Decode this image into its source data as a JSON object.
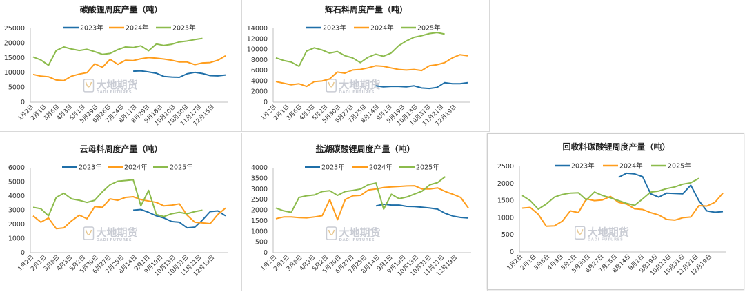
{
  "watermark": {
    "cn": "大地期货",
    "en": "DADI FUTURES"
  },
  "colors": {
    "2023年": "#1f6fa8",
    "2024年": "#ff9d1c",
    "2025年": "#8cbb4c"
  },
  "chart_data": [
    {
      "type": "line",
      "title": "碳酸锂周度产量（吨）",
      "ylim": [
        0,
        25000
      ],
      "yticks": [
        0,
        5000,
        10000,
        15000,
        20000,
        25000
      ],
      "xtick_labels": [
        "1月2日",
        "2月1日",
        "3月6日",
        "4月3日",
        "5月1日",
        "5月29日",
        "6月26日",
        "7月24日",
        "8月11日",
        "8月29日",
        "9月18日",
        "10月10日",
        "10月30日",
        "11月17日",
        "12月15日"
      ],
      "x_points": 26,
      "legend": "top",
      "series": [
        {
          "name": "2023年",
          "start": 13,
          "values": [
            10500,
            10600,
            10200,
            9800,
            8700,
            8500,
            8400,
            9600,
            10100,
            9700,
            9000,
            8900,
            9200
          ]
        },
        {
          "name": "2024年",
          "start": 0,
          "values": [
            9400,
            8800,
            8600,
            7500,
            7300,
            8800,
            9500,
            10000,
            13000,
            11800,
            14500,
            12800,
            14200,
            14100,
            14700,
            15100,
            14900,
            14600,
            14200,
            13600,
            13600,
            12700,
            13300,
            13400,
            14200,
            15700
          ]
        },
        {
          "name": "2025年",
          "start": 0,
          "values": [
            15300,
            14300,
            12500,
            17500,
            18700,
            18000,
            17500,
            17900,
            17100,
            16200,
            16500,
            17800,
            18700,
            18500,
            19100,
            17400,
            19700,
            19200,
            19600,
            20400,
            20700,
            21200,
            21600
          ]
        }
      ]
    },
    {
      "type": "line",
      "title": "辉石料周度产量（吨）",
      "ylim": [
        0,
        14000
      ],
      "yticks": [
        0,
        2000,
        4000,
        6000,
        8000,
        10000,
        12000,
        14000
      ],
      "xtick_labels": [
        "1月2日",
        "2月1日",
        "3月6日",
        "4月3日",
        "5月2日",
        "5月30日",
        "6月27日",
        "7月25日",
        "8月14日",
        "9月1日",
        "9月19日",
        "10月13日",
        "10月31日",
        "11月21日",
        "12月19日"
      ],
      "x_points": 26,
      "legend": "top",
      "series": [
        {
          "name": "2023年",
          "start": 13,
          "values": [
            3100,
            2900,
            3000,
            3000,
            2900,
            3100,
            2700,
            2600,
            2800,
            3700,
            3500,
            3500,
            3700
          ]
        },
        {
          "name": "2024年",
          "start": 0,
          "values": [
            3900,
            3600,
            3300,
            3500,
            3000,
            3900,
            4000,
            4400,
            5700,
            5500,
            6100,
            6200,
            6500,
            6900,
            6800,
            6500,
            6200,
            6100,
            6200,
            6000,
            6900,
            7100,
            7500,
            8400,
            9000,
            8800
          ]
        },
        {
          "name": "2025年",
          "start": 0,
          "values": [
            8400,
            7900,
            7600,
            6800,
            9700,
            10300,
            9900,
            9300,
            9600,
            8800,
            8400,
            7500,
            8500,
            9100,
            8700,
            9300,
            10700,
            11600,
            12300,
            12600,
            13000,
            13200,
            12900
          ]
        }
      ]
    },
    {
      "type": "line",
      "title": "云母料周度产量（吨）",
      "ylim": [
        0,
        6000
      ],
      "yticks": [
        0,
        1000,
        2000,
        3000,
        4000,
        5000,
        6000
      ],
      "xtick_labels": [
        "1月2日",
        "2月1日",
        "3月6日",
        "4月3日",
        "5月2日",
        "5月30日",
        "6月27日",
        "7月25日",
        "8月14日",
        "9月1日",
        "9月19日",
        "10月13日",
        "10月31日",
        "11月21日",
        "12月19日"
      ],
      "x_points": 26,
      "legend": "top",
      "series": [
        {
          "name": "2023年",
          "start": 13,
          "values": [
            3000,
            3050,
            2850,
            2600,
            2450,
            2200,
            2150,
            1750,
            1800,
            2300,
            2900,
            2950,
            2600
          ]
        },
        {
          "name": "2024年",
          "start": 0,
          "values": [
            2600,
            2150,
            2450,
            1700,
            1750,
            2250,
            2650,
            2400,
            3250,
            3200,
            3800,
            3700,
            3900,
            3950,
            3750,
            3650,
            3550,
            3300,
            3350,
            3450,
            2650,
            2150,
            2100,
            2050,
            2700,
            3150
          ]
        },
        {
          "name": "2025年",
          "start": 0,
          "values": [
            3200,
            3100,
            2600,
            3900,
            4200,
            3800,
            3700,
            3550,
            3700,
            4300,
            4800,
            5050,
            5100,
            5150,
            3300,
            4400,
            2700,
            2550,
            2750,
            2850,
            2750,
            2900,
            3000
          ]
        }
      ]
    },
    {
      "type": "line",
      "title": "盐湖碳酸锂周度产量（吨）",
      "ylim": [
        0,
        4000
      ],
      "yticks": [
        0,
        500,
        1000,
        1500,
        2000,
        2500,
        3000,
        3500,
        4000
      ],
      "xtick_labels": [
        "1月2日",
        "2月1日",
        "3月6日",
        "4月3日",
        "5月2日",
        "5月30日",
        "6月27日",
        "7月25日",
        "8月14日",
        "9月1日",
        "9月19日",
        "10月13日",
        "10月31日",
        "11月21日",
        "12月19日"
      ],
      "x_points": 26,
      "legend": "top",
      "series": [
        {
          "name": "2023年",
          "start": 13,
          "values": [
            2200,
            2280,
            2240,
            2240,
            2180,
            2170,
            2140,
            2100,
            2050,
            1850,
            1720,
            1660,
            1630
          ]
        },
        {
          "name": "2024年",
          "start": 0,
          "values": [
            1600,
            1680,
            1680,
            1650,
            1640,
            1680,
            1740,
            2500,
            1550,
            2500,
            2680,
            2700,
            2950,
            3000,
            3070,
            3100,
            3120,
            3140,
            3150,
            3000,
            3000,
            3050,
            2880,
            2750,
            2600,
            2100
          ]
        },
        {
          "name": "2025年",
          "start": 0,
          "values": [
            2100,
            1970,
            1900,
            2600,
            2680,
            2720,
            2880,
            2920,
            2700,
            2880,
            2930,
            3000,
            3200,
            3280,
            2050,
            2750,
            2540,
            2620,
            2760,
            2900,
            3200,
            3300,
            3580
          ]
        }
      ]
    },
    {
      "type": "line",
      "title": "回收料碳酸锂周度产量（吨）",
      "ylim": [
        0,
        2500
      ],
      "yticks": [
        0,
        500,
        1000,
        1500,
        2000,
        2500
      ],
      "xtick_labels": [
        "1月2日",
        "2月1日",
        "3月6日",
        "4月3日",
        "5月2日",
        "5月30日",
        "6月27日",
        "7月25日",
        "8月14日",
        "9月1日",
        "9月19日",
        "10月13日",
        "10月31日",
        "11月21日",
        "12月19日"
      ],
      "x_points": 26,
      "legend": "top",
      "series": [
        {
          "name": "2023年",
          "start": 12,
          "values": [
            2180,
            2300,
            2280,
            2200,
            1700,
            1600,
            1720,
            1710,
            1700,
            1950,
            1500,
            1200,
            1160,
            1180
          ]
        },
        {
          "name": "2024年",
          "start": 0,
          "values": [
            1280,
            1300,
            1100,
            750,
            760,
            900,
            1200,
            1150,
            1550,
            1500,
            1520,
            1620,
            1450,
            1400,
            1260,
            1240,
            1150,
            1080,
            950,
            930,
            1000,
            1020,
            1350,
            1340,
            1450,
            1720
          ]
        },
        {
          "name": "2025年",
          "start": 0,
          "values": [
            1650,
            1500,
            1250,
            1400,
            1600,
            1680,
            1720,
            1730,
            1520,
            1750,
            1650,
            1580,
            1500,
            1420,
            1360,
            1550,
            1750,
            1780,
            1850,
            1900,
            1980,
            2020,
            2150
          ]
        }
      ]
    }
  ]
}
